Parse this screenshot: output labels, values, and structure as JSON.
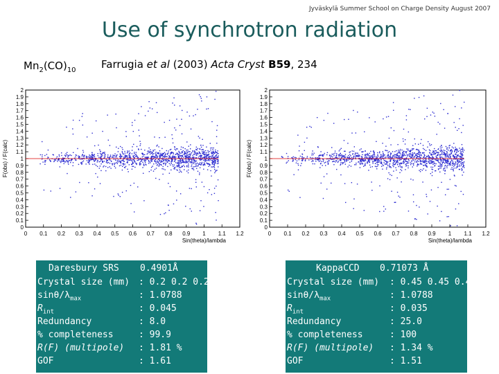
{
  "header_note": "Jyväskylä Summer School on Charge Density August 2007",
  "title": "Use of synchrotron radiation",
  "compound": {
    "base": "Mn",
    "sub1": "2",
    "mid": "(CO)",
    "sub2": "10"
  },
  "citation": {
    "author": "Farrugia ",
    "etal": "et al",
    "year": " (2003) ",
    "journal": "Acta Cryst",
    "volume": " B59",
    "pages": ", 234"
  },
  "chart_data": [
    {
      "type": "scatter",
      "title": "",
      "xlabel": "Sin(theta)/lambda",
      "ylabel": "F(obs) / F(calc)",
      "xlim": [
        0,
        1.2
      ],
      "ylim": [
        0,
        2
      ],
      "x_ticks": [
        "0",
        "0.1",
        "0.2",
        "0.3",
        "0.4",
        "0.5",
        "0.6",
        "0.7",
        "0.8",
        "0.9",
        "1",
        "1.1",
        "1.2"
      ],
      "y_ticks": [
        "0",
        "0.1",
        "0.2",
        "0.3",
        "0.4",
        "0.5",
        "0.6",
        "0.7",
        "0.8",
        "0.9",
        "1",
        "1.1",
        "1.2",
        "1.3",
        "1.4",
        "1.5",
        "1.6",
        "1.7",
        "1.8",
        "1.9",
        "2"
      ],
      "series": [
        {
          "name": "Daresbury SRS",
          "x_range": [
            0.05,
            1.08
          ],
          "center": 1.0,
          "color": "#2a2ad0"
        }
      ],
      "reference_line": 1.0
    },
    {
      "type": "scatter",
      "title": "",
      "xlabel": "Sin(theta)/lambda",
      "ylabel": "F(obs) / F(calc)",
      "xlim": [
        0,
        1.2
      ],
      "ylim": [
        0,
        2
      ],
      "x_ticks": [
        "0",
        "0.1",
        "0.2",
        "0.3",
        "0.4",
        "0.5",
        "0.6",
        "0.7",
        "0.8",
        "0.9",
        "1",
        "1.1",
        "1.2"
      ],
      "y_ticks": [
        "0",
        "0.1",
        "0.2",
        "0.3",
        "0.4",
        "0.5",
        "0.6",
        "0.7",
        "0.8",
        "0.9",
        "1",
        "1.1",
        "1.2",
        "1.3",
        "1.4",
        "1.5",
        "1.6",
        "1.7",
        "1.8",
        "1.9",
        "2"
      ],
      "series": [
        {
          "name": "Kappa CCD",
          "x_range": [
            0.05,
            1.08
          ],
          "center": 1.0,
          "color": "#2a2ad0"
        }
      ],
      "reference_line": 1.0
    }
  ],
  "panel_left": {
    "source": "Daresbury SRS",
    "wavelength": "0.4901Å",
    "labels": [
      "Crystal size (mm)",
      "sinθ/λ",
      "R",
      "Redundancy",
      "% completeness",
      "R(F) (multipole)",
      "GOF"
    ],
    "label_subs": [
      "",
      "max",
      "int",
      "",
      "",
      "",
      ""
    ],
    "values": [
      ": 0.2 0.2 0.2",
      ": 1.0788",
      ": 0.045",
      ": 8.0",
      ": 99.9",
      ": 1.81 %",
      ": 1.61"
    ]
  },
  "panel_right": {
    "source": "KappaCCD",
    "wavelength": "0.71073 Å",
    "labels": [
      "Crystal size (mm)",
      "sinθ/λ",
      "R",
      "Redundancy",
      "% completeness",
      "R(F) (multipole)",
      "GOF"
    ],
    "label_subs": [
      "",
      "max",
      "int",
      "",
      "",
      "",
      ""
    ],
    "values": [
      ": 0.45 0.45 0.4",
      ": 1.0788",
      ": 0.035",
      ": 25.0",
      ": 100",
      ": 1.34 %",
      ": 1.51"
    ]
  }
}
